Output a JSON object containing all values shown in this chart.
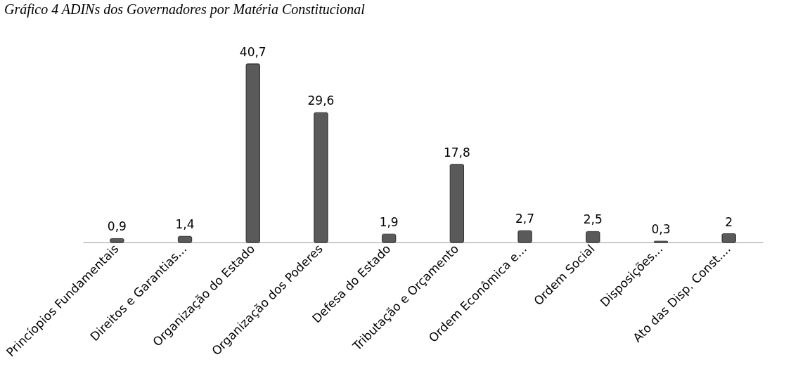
{
  "chart_data": {
    "type": "bar",
    "title": "Gráfico 4 ADINs dos Governadores por Matéria Constitucional",
    "categories": [
      "Princíopios Fundamentais",
      "Direitos e Garantias...",
      "Organização do Estado",
      "Organização dos Poderes",
      "Defesa do Estado",
      "Tributação e Orçamento",
      "Ordem Econômica e...",
      "Ordem Social",
      "Disposições...",
      "Ato das Disp. Const...."
    ],
    "values": [
      0.9,
      1.4,
      40.7,
      29.6,
      1.9,
      17.8,
      2.7,
      2.5,
      0.3,
      2
    ],
    "value_labels": [
      "0,9",
      "1,4",
      "40,7",
      "29,6",
      "1,9",
      "17,8",
      "2,7",
      "2,5",
      "0,3",
      "2"
    ],
    "color": "#5a5a5a"
  }
}
